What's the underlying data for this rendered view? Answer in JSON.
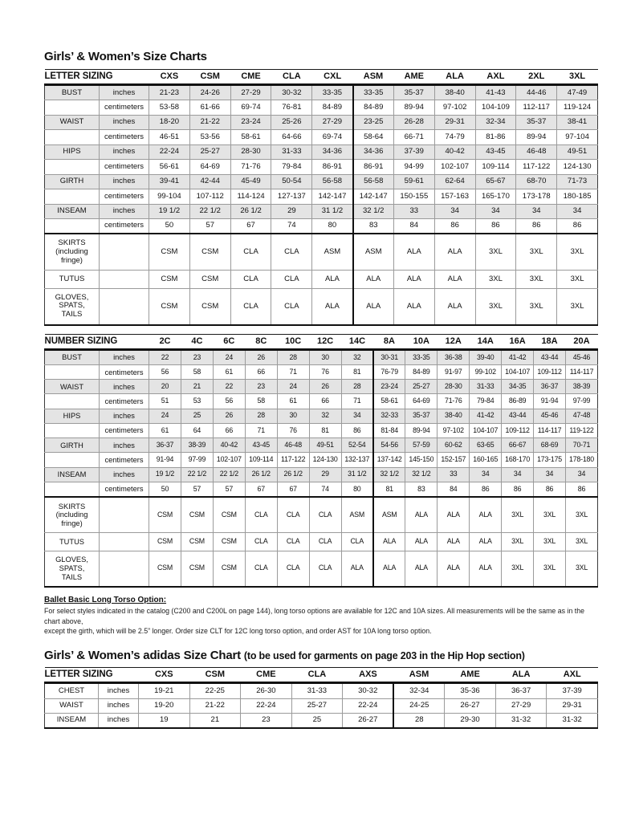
{
  "page": {
    "title": "Girls’ & Women’s Size Charts"
  },
  "tables": [
    {
      "name": "letter-sizing",
      "header_label": "LETTER SIZING",
      "columns": [
        "CXS",
        "CSM",
        "CME",
        "CLA",
        "CXL",
        "ASM",
        "AME",
        "ALA",
        "AXL",
        "2XL",
        "3XL"
      ],
      "divider_after": 5,
      "rows": [
        {
          "label": "BUST",
          "unit": "inches",
          "shaded": true,
          "values": [
            "21-23",
            "24-26",
            "27-29",
            "30-32",
            "33-35",
            "33-35",
            "35-37",
            "38-40",
            "41-43",
            "44-46",
            "47-49"
          ]
        },
        {
          "label": "",
          "unit": "centimeters",
          "shaded": false,
          "values": [
            "53-58",
            "61-66",
            "69-74",
            "76-81",
            "84-89",
            "84-89",
            "89-94",
            "97-102",
            "104-109",
            "112-117",
            "119-124"
          ]
        },
        {
          "label": "WAIST",
          "unit": "inches",
          "shaded": true,
          "values": [
            "18-20",
            "21-22",
            "23-24",
            "25-26",
            "27-29",
            "23-25",
            "26-28",
            "29-31",
            "32-34",
            "35-37",
            "38-41"
          ]
        },
        {
          "label": "",
          "unit": "centimeters",
          "shaded": false,
          "values": [
            "46-51",
            "53-56",
            "58-61",
            "64-66",
            "69-74",
            "58-64",
            "66-71",
            "74-79",
            "81-86",
            "89-94",
            "97-104"
          ]
        },
        {
          "label": "HIPS",
          "unit": "inches",
          "shaded": true,
          "values": [
            "22-24",
            "25-27",
            "28-30",
            "31-33",
            "34-36",
            "34-36",
            "37-39",
            "40-42",
            "43-45",
            "46-48",
            "49-51"
          ]
        },
        {
          "label": "",
          "unit": "centimeters",
          "shaded": false,
          "values": [
            "56-61",
            "64-69",
            "71-76",
            "79-84",
            "86-91",
            "86-91",
            "94-99",
            "102-107",
            "109-114",
            "117-122",
            "124-130"
          ]
        },
        {
          "label": "GIRTH",
          "unit": "inches",
          "shaded": true,
          "values": [
            "39-41",
            "42-44",
            "45-49",
            "50-54",
            "56-58",
            "56-58",
            "59-61",
            "62-64",
            "65-67",
            "68-70",
            "71-73"
          ]
        },
        {
          "label": "",
          "unit": "centimeters",
          "shaded": false,
          "values": [
            "99-104",
            "107-112",
            "114-124",
            "127-137",
            "142-147",
            "142-147",
            "150-155",
            "157-163",
            "165-170",
            "173-178",
            "180-185"
          ]
        },
        {
          "label": "INSEAM",
          "unit": "inches",
          "shaded": true,
          "values": [
            "19 1/2",
            "22 1/2",
            "26 1/2",
            "29",
            "31 1/2",
            "32 1/2",
            "33",
            "34",
            "34",
            "34",
            "34"
          ]
        },
        {
          "label": "",
          "unit": "centimeters",
          "shaded": false,
          "values": [
            "50",
            "57",
            "67",
            "74",
            "80",
            "83",
            "84",
            "86",
            "86",
            "86",
            "86"
          ]
        }
      ],
      "footer_rows": [
        {
          "label": "SKIRTS\n(including fringe)",
          "values": [
            "CSM",
            "CSM",
            "CLA",
            "CLA",
            "ASM",
            "ASM",
            "ALA",
            "ALA",
            "3XL",
            "3XL",
            "3XL"
          ]
        },
        {
          "label": "TUTUS",
          "values": [
            "CSM",
            "CSM",
            "CLA",
            "CLA",
            "ALA",
            "ALA",
            "ALA",
            "ALA",
            "3XL",
            "3XL",
            "3XL"
          ]
        },
        {
          "label": "GLOVES, SPATS,\nTAILS",
          "values": [
            "CSM",
            "CSM",
            "CLA",
            "CLA",
            "ALA",
            "ALA",
            "ALA",
            "ALA",
            "3XL",
            "3XL",
            "3XL"
          ]
        }
      ]
    },
    {
      "name": "number-sizing",
      "header_label": "NUMBER SIZING",
      "columns": [
        "2C",
        "4C",
        "6C",
        "8C",
        "10C",
        "12C",
        "14C",
        "8A",
        "10A",
        "12A",
        "14A",
        "16A",
        "18A",
        "20A"
      ],
      "divider_after": 7,
      "rows": [
        {
          "label": "BUST",
          "unit": "inches",
          "shaded": true,
          "values": [
            "22",
            "23",
            "24",
            "26",
            "28",
            "30",
            "32",
            "30-31",
            "33-35",
            "36-38",
            "39-40",
            "41-42",
            "43-44",
            "45-46"
          ]
        },
        {
          "label": "",
          "unit": "centimeters",
          "shaded": false,
          "values": [
            "56",
            "58",
            "61",
            "66",
            "71",
            "76",
            "81",
            "76-79",
            "84-89",
            "91-97",
            "99-102",
            "104-107",
            "109-112",
            "114-117"
          ]
        },
        {
          "label": "WAIST",
          "unit": "inches",
          "shaded": true,
          "values": [
            "20",
            "21",
            "22",
            "23",
            "24",
            "26",
            "28",
            "23-24",
            "25-27",
            "28-30",
            "31-33",
            "34-35",
            "36-37",
            "38-39"
          ]
        },
        {
          "label": "",
          "unit": "centimeters",
          "shaded": false,
          "values": [
            "51",
            "53",
            "56",
            "58",
            "61",
            "66",
            "71",
            "58-61",
            "64-69",
            "71-76",
            "79-84",
            "86-89",
            "91-94",
            "97-99"
          ]
        },
        {
          "label": "HIPS",
          "unit": "inches",
          "shaded": true,
          "values": [
            "24",
            "25",
            "26",
            "28",
            "30",
            "32",
            "34",
            "32-33",
            "35-37",
            "38-40",
            "41-42",
            "43-44",
            "45-46",
            "47-48"
          ]
        },
        {
          "label": "",
          "unit": "centimeters",
          "shaded": false,
          "values": [
            "61",
            "64",
            "66",
            "71",
            "76",
            "81",
            "86",
            "81-84",
            "89-94",
            "97-102",
            "104-107",
            "109-112",
            "114-117",
            "119-122"
          ]
        },
        {
          "label": "GIRTH",
          "unit": "inches",
          "shaded": true,
          "values": [
            "36-37",
            "38-39",
            "40-42",
            "43-45",
            "46-48",
            "49-51",
            "52-54",
            "54-56",
            "57-59",
            "60-62",
            "63-65",
            "66-67",
            "68-69",
            "70-71"
          ]
        },
        {
          "label": "",
          "unit": "centimeters",
          "shaded": false,
          "values": [
            "91-94",
            "97-99",
            "102-107",
            "109-114",
            "117-122",
            "124-130",
            "132-137",
            "137-142",
            "145-150",
            "152-157",
            "160-165",
            "168-170",
            "173-175",
            "178-180"
          ]
        },
        {
          "label": "INSEAM",
          "unit": "inches",
          "shaded": true,
          "values": [
            "19 1/2",
            "22 1/2",
            "22 1/2",
            "26 1/2",
            "26 1/2",
            "29",
            "31 1/2",
            "32 1/2",
            "32 1/2",
            "33",
            "34",
            "34",
            "34",
            "34"
          ]
        },
        {
          "label": "",
          "unit": "centimeters",
          "shaded": false,
          "values": [
            "50",
            "57",
            "57",
            "67",
            "67",
            "74",
            "80",
            "81",
            "83",
            "84",
            "86",
            "86",
            "86",
            "86"
          ]
        }
      ],
      "footer_rows": [
        {
          "label": "SKIRTS\n(including fringe)",
          "values": [
            "CSM",
            "CSM",
            "CSM",
            "CLA",
            "CLA",
            "CLA",
            "ASM",
            "ASM",
            "ALA",
            "ALA",
            "ALA",
            "3XL",
            "3XL",
            "3XL"
          ]
        },
        {
          "label": "TUTUS",
          "values": [
            "CSM",
            "CSM",
            "CSM",
            "CLA",
            "CLA",
            "CLA",
            "CLA",
            "ALA",
            "ALA",
            "ALA",
            "ALA",
            "3XL",
            "3XL",
            "3XL"
          ]
        },
        {
          "label": "GLOVES, SPATS,\nTAILS",
          "values": [
            "CSM",
            "CSM",
            "CSM",
            "CLA",
            "CLA",
            "CLA",
            "ALA",
            "ALA",
            "ALA",
            "ALA",
            "ALA",
            "3XL",
            "3XL",
            "3XL"
          ]
        }
      ]
    },
    {
      "name": "adidas-letter-sizing",
      "header_label": "LETTER SIZING",
      "columns": [
        "CXS",
        "CSM",
        "CME",
        "CLA",
        "AXS",
        "ASM",
        "AME",
        "ALA",
        "AXL"
      ],
      "divider_after": 5,
      "rows": [
        {
          "label": "CHEST",
          "unit": "inches",
          "shaded": false,
          "values": [
            "19-21",
            "22-25",
            "26-30",
            "31-33",
            "30-32",
            "32-34",
            "35-36",
            "36-37",
            "37-39"
          ]
        },
        {
          "label": "WAIST",
          "unit": "inches",
          "shaded": false,
          "values": [
            "19-20",
            "21-22",
            "22-24",
            "25-27",
            "22-24",
            "24-25",
            "26-27",
            "27-29",
            "29-31"
          ]
        },
        {
          "label": "INSEAM",
          "unit": "inches",
          "shaded": false,
          "values": [
            "19",
            "21",
            "23",
            "25",
            "26-27",
            "28",
            "29-30",
            "31-32",
            "31-32"
          ]
        }
      ],
      "footer_rows": []
    }
  ],
  "note": {
    "title": "Ballet Basic Long Torso Option:",
    "line1": "For select styles indicated in the catalog (C200 and C200L on page 144), long torso options are available for 12C and 10A sizes. All measurements will be the same as in the chart above,",
    "line2": "except the girth, which will be 2.5” longer. Order size CLT for 12C long torso option, and order AST for 10A long torso option."
  },
  "adidas_heading": {
    "title": "Girls’ & Women’s adidas Size Chart",
    "suffix": "(to be used for garments on page 203 in the Hip Hop section)"
  }
}
